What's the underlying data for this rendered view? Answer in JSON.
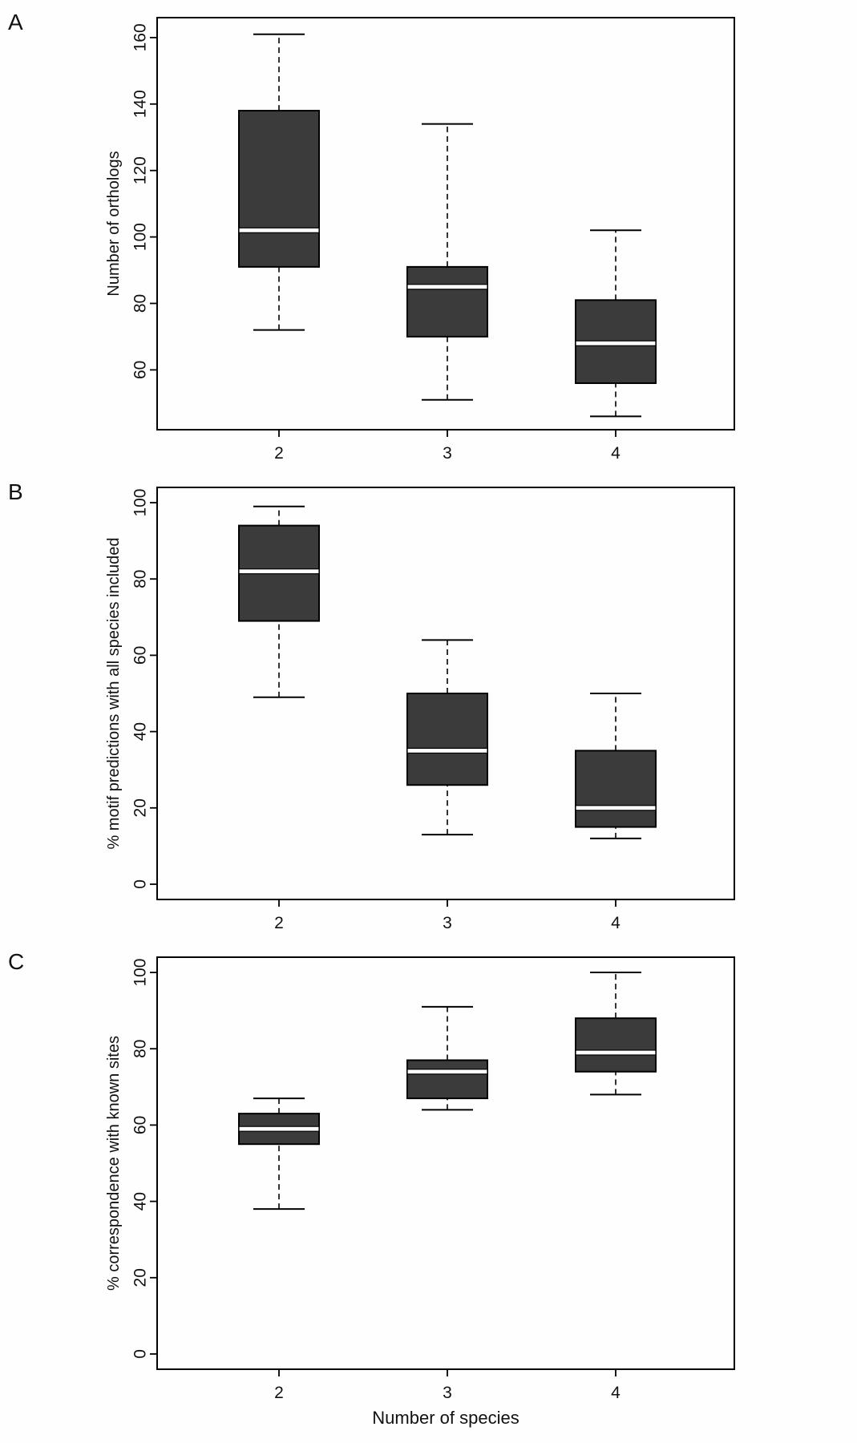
{
  "figure": {
    "xlabel": "Number of species",
    "background": "#ffffff",
    "panel_count": 3
  },
  "colors": {
    "box_fill": "#3b3b3b",
    "box_border": "#000000",
    "median": "#ffffff",
    "axis": "#000000"
  },
  "chart_data": [
    {
      "type": "boxplot",
      "panel_label": "A",
      "title": "",
      "ylabel": "Number of orthologs",
      "xlabel": "",
      "categories": [
        "2",
        "3",
        "4"
      ],
      "yticks": [
        60,
        80,
        100,
        120,
        140,
        160
      ],
      "ylim": [
        42,
        166
      ],
      "grid": false,
      "boxes": [
        {
          "category": "2",
          "whisker_low": 72,
          "q1": 91,
          "median": 102,
          "q3": 138,
          "whisker_high": 161
        },
        {
          "category": "3",
          "whisker_low": 51,
          "q1": 70,
          "median": 85,
          "q3": 91,
          "whisker_high": 134
        },
        {
          "category": "4",
          "whisker_low": 46,
          "q1": 56,
          "median": 68,
          "q3": 81,
          "whisker_high": 102
        }
      ]
    },
    {
      "type": "boxplot",
      "panel_label": "B",
      "title": "",
      "ylabel": "% motif predictions with all species included",
      "xlabel": "",
      "categories": [
        "2",
        "3",
        "4"
      ],
      "yticks": [
        0,
        20,
        40,
        60,
        80,
        100
      ],
      "ylim": [
        -4,
        104
      ],
      "grid": false,
      "boxes": [
        {
          "category": "2",
          "whisker_low": 49,
          "q1": 69,
          "median": 82,
          "q3": 94,
          "whisker_high": 99
        },
        {
          "category": "3",
          "whisker_low": 13,
          "q1": 26,
          "median": 35,
          "q3": 50,
          "whisker_high": 64
        },
        {
          "category": "4",
          "whisker_low": 12,
          "q1": 15,
          "median": 20,
          "q3": 35,
          "whisker_high": 50
        }
      ]
    },
    {
      "type": "boxplot",
      "panel_label": "C",
      "title": "",
      "ylabel": "% correspondence with known sites",
      "xlabel": "Number of species",
      "categories": [
        "2",
        "3",
        "4"
      ],
      "yticks": [
        0,
        20,
        40,
        60,
        80,
        100
      ],
      "ylim": [
        -4,
        104
      ],
      "grid": false,
      "boxes": [
        {
          "category": "2",
          "whisker_low": 38,
          "q1": 55,
          "median": 59,
          "q3": 63,
          "whisker_high": 67
        },
        {
          "category": "3",
          "whisker_low": 64,
          "q1": 67,
          "median": 74,
          "q3": 77,
          "whisker_high": 91
        },
        {
          "category": "4",
          "whisker_low": 68,
          "q1": 74,
          "median": 79,
          "q3": 88,
          "whisker_high": 100
        }
      ]
    }
  ]
}
